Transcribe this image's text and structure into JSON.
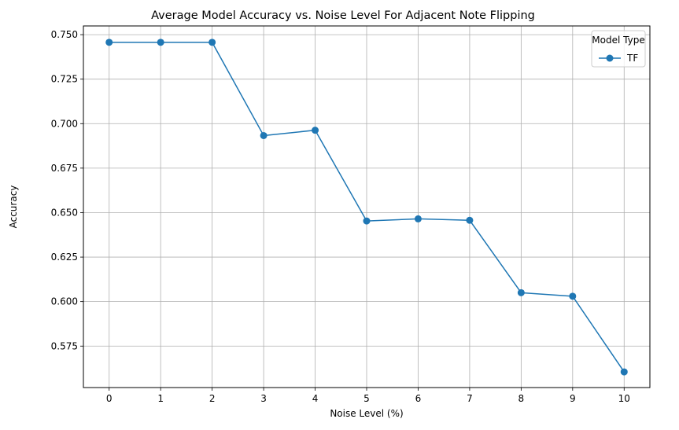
{
  "chart_data": {
    "type": "line",
    "title": "Average Model Accuracy vs. Noise Level For Adjacent Note Flipping",
    "xlabel": "Noise Level (%)",
    "ylabel": "Accuracy",
    "x": [
      0,
      1,
      2,
      3,
      4,
      5,
      6,
      7,
      8,
      9,
      10
    ],
    "x_tick_labels": [
      "0",
      "1",
      "2",
      "3",
      "4",
      "5",
      "6",
      "7",
      "8",
      "9",
      "10"
    ],
    "y_ticks": [
      0.575,
      0.6,
      0.625,
      0.65,
      0.675,
      0.7,
      0.725,
      0.75
    ],
    "y_tick_labels": [
      "0.575",
      "0.600",
      "0.625",
      "0.650",
      "0.675",
      "0.700",
      "0.725",
      "0.750"
    ],
    "xlim": [
      -0.5,
      10.5
    ],
    "ylim": [
      0.5517,
      0.7549
    ],
    "grid": true,
    "legend": {
      "title": "Model Type",
      "placement": "top-right"
    },
    "series": [
      {
        "name": "TF",
        "color": "#1f77b4",
        "marker": "circle",
        "values": [
          0.7457,
          0.7457,
          0.7457,
          0.6933,
          0.6963,
          0.6453,
          0.6465,
          0.6457,
          0.605,
          0.603,
          0.5605
        ]
      }
    ]
  }
}
